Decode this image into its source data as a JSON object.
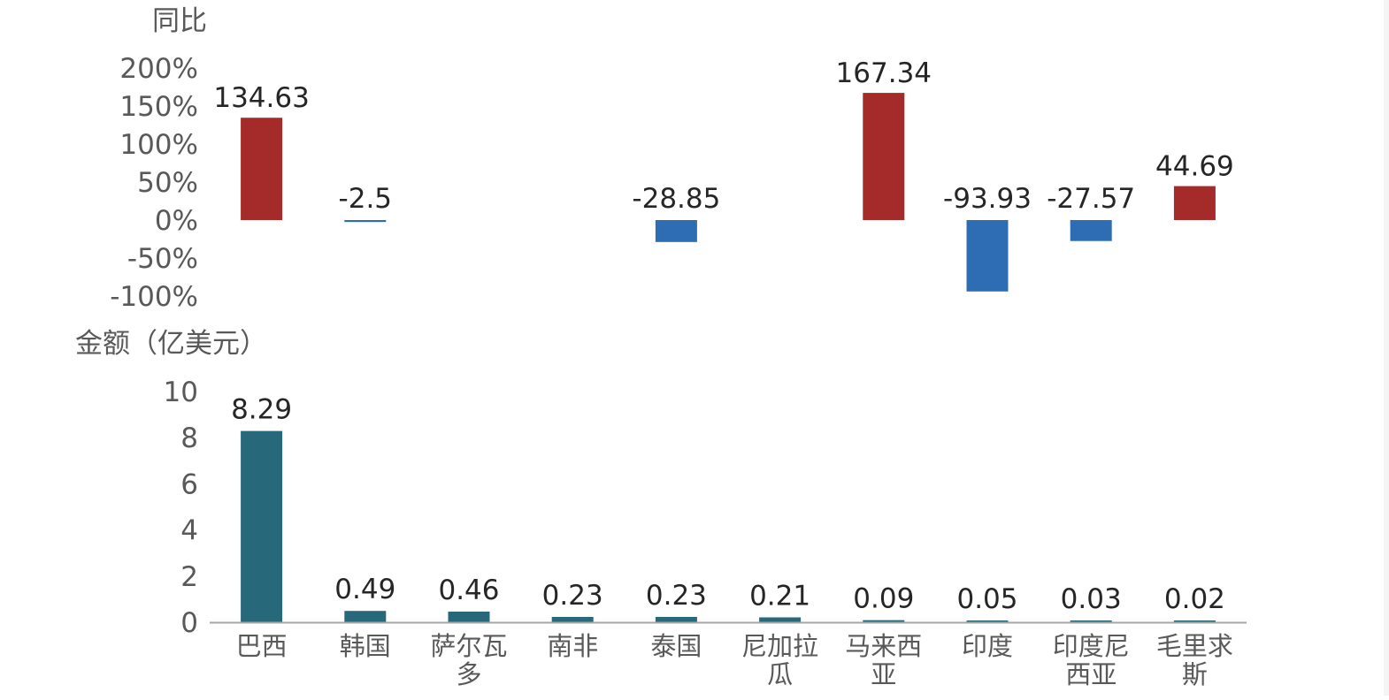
{
  "colors": {
    "positive": "#a52a2a",
    "negative": "#2e6db4",
    "amount": "#27687a",
    "axis": "#a6a6a6",
    "tick_text": "#595959",
    "label_text": "#262626"
  },
  "chart_data": [
    {
      "type": "bar",
      "title": "",
      "ylabel": "同比",
      "xlabel": "",
      "ylim": [
        -100,
        200
      ],
      "yticks": [
        "200%",
        "150%",
        "100%",
        "50%",
        "0%",
        "-50%",
        "-100%"
      ],
      "ytick_values": [
        200,
        150,
        100,
        50,
        0,
        -50,
        -100
      ],
      "categories": [
        "巴西",
        "韩国",
        "萨尔瓦多",
        "南非",
        "泰国",
        "尼加拉瓜",
        "马来西亚",
        "印度",
        "印度尼西亚",
        "毛里求斯"
      ],
      "values": [
        134.63,
        -2.5,
        null,
        null,
        -28.85,
        null,
        167.34,
        -93.93,
        -27.57,
        44.69
      ],
      "value_labels": [
        "134.63",
        "-2.5",
        "",
        "",
        "-28.85",
        "",
        "167.34",
        "-93.93",
        "-27.57",
        "44.69"
      ],
      "grid": false,
      "legend": "none"
    },
    {
      "type": "bar",
      "title": "",
      "ylabel": "金额（亿美元）",
      "xlabel": "",
      "ylim": [
        0,
        10
      ],
      "yticks": [
        "10",
        "8",
        "6",
        "4",
        "2",
        "0"
      ],
      "ytick_values": [
        10,
        8,
        6,
        4,
        2,
        0
      ],
      "categories": [
        "巴西",
        "韩国",
        "萨尔瓦多",
        "南非",
        "泰国",
        "尼加拉瓜",
        "马来西亚",
        "印度",
        "印度尼西亚",
        "毛里求斯"
      ],
      "category_lines": [
        [
          "巴西"
        ],
        [
          "韩国"
        ],
        [
          "萨尔瓦",
          "多"
        ],
        [
          "南非"
        ],
        [
          "泰国"
        ],
        [
          "尼加拉",
          "瓜"
        ],
        [
          "马来西",
          "亚"
        ],
        [
          "印度"
        ],
        [
          "印度尼",
          "西亚"
        ],
        [
          "毛里求",
          "斯"
        ]
      ],
      "values": [
        8.29,
        0.49,
        0.46,
        0.23,
        0.23,
        0.21,
        0.09,
        0.05,
        0.03,
        0.02
      ],
      "value_labels": [
        "8.29",
        "0.49",
        "0.46",
        "0.23",
        "0.23",
        "0.21",
        "0.09",
        "0.05",
        "0.03",
        "0.02"
      ],
      "grid": false,
      "legend": "none"
    }
  ]
}
